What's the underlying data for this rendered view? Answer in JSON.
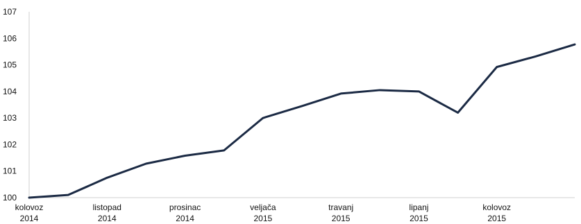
{
  "chart_data": {
    "type": "line",
    "x": [
      "2014-08",
      "2014-09",
      "2014-10",
      "2014-11",
      "2014-12",
      "2015-01",
      "2015-02",
      "2015-03",
      "2015-04",
      "2015-05",
      "2015-06",
      "2015-07",
      "2015-08",
      "2015-09",
      "2015-10"
    ],
    "series": [
      {
        "values": [
          100.0,
          100.1,
          100.75,
          101.28,
          101.58,
          101.78,
          103.0,
          103.45,
          103.92,
          104.05,
          104.0,
          103.2,
          104.92,
          105.32,
          105.77
        ]
      }
    ],
    "x_tick_labels": [
      {
        "line1": "kolovoz",
        "line2": "2014"
      },
      {
        "line1": "listopad",
        "line2": "2014"
      },
      {
        "line1": "prosinac",
        "line2": "2014"
      },
      {
        "line1": "veljača",
        "line2": "2015"
      },
      {
        "line1": "travanj",
        "line2": "2015"
      },
      {
        "line1": "lipanj",
        "line2": "2015"
      },
      {
        "line1": "kolovoz",
        "line2": "2015"
      }
    ],
    "y_ticks": [
      100,
      101,
      102,
      103,
      104,
      105,
      106,
      107
    ],
    "ylim": [
      100,
      107
    ],
    "grid": false,
    "line_color": "#1b2a44",
    "axis_color": "#cfcfcf",
    "text_color": "#111111"
  }
}
